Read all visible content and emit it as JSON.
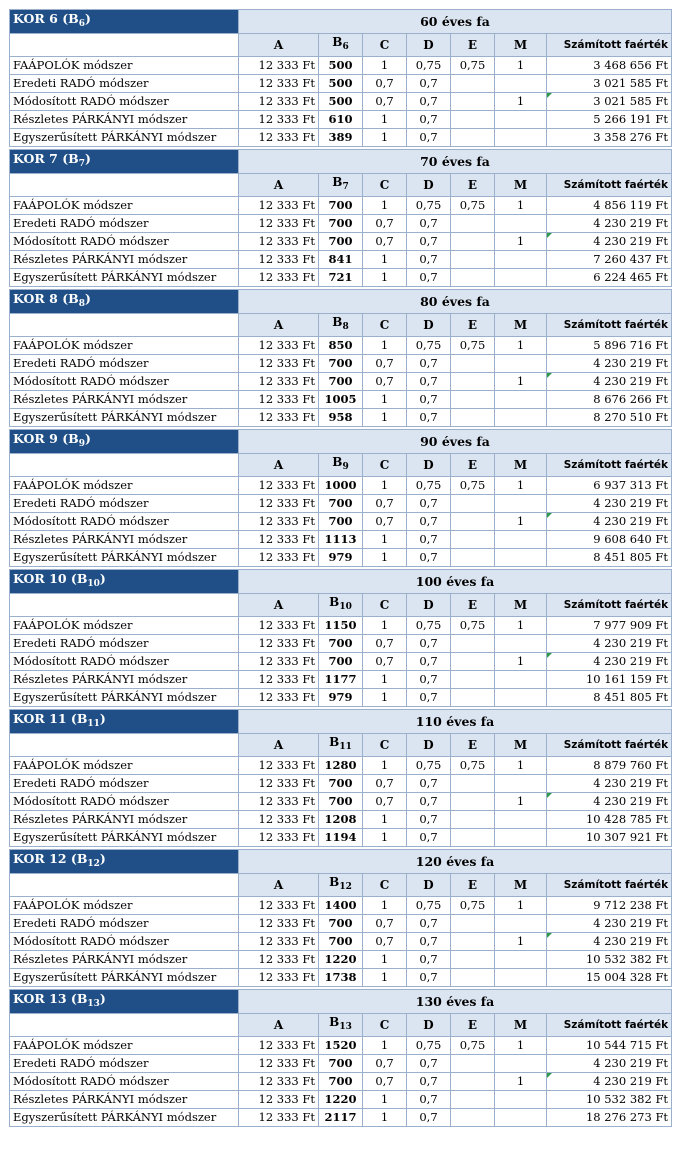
{
  "headers": {
    "a": "A",
    "b": "B",
    "c": "C",
    "d": "D",
    "e": "E",
    "m": "M",
    "result": "Számított faérték"
  },
  "blocks": [
    {
      "group": "KOR 6 (B",
      "index": "6",
      "close": ")",
      "age": "60 éves fa",
      "rows": [
        {
          "method": "FAÁPOLÓK módszer",
          "a": "12 333 Ft",
          "b": "500",
          "c": "1",
          "d": "0,75",
          "e": "0,75",
          "m": "1",
          "value": "3 468 656 Ft"
        },
        {
          "method": "Eredeti RADÓ módszer",
          "a": "12 333 Ft",
          "b": "500",
          "c": "0,7",
          "d": "0,7",
          "e": "",
          "m": "",
          "value": "3 021 585 Ft"
        },
        {
          "method": "Módosított RADÓ módszer",
          "a": "12 333 Ft",
          "b": "500",
          "c": "0,7",
          "d": "0,7",
          "e": "",
          "m": "1",
          "value": "3 021 585 Ft"
        },
        {
          "method": "Részletes PÁRKÁNYI módszer",
          "a": "12 333 Ft",
          "b": "610",
          "c": "1",
          "d": "0,7",
          "e": "",
          "m": "",
          "value": "5 266 191 Ft"
        },
        {
          "method": "Egyszerűsített PÁRKÁNYI módszer",
          "a": "12 333 Ft",
          "b": "389",
          "c": "1",
          "d": "0,7",
          "e": "",
          "m": "",
          "value": "3 358 276 Ft"
        }
      ]
    },
    {
      "group": "KOR 7 (B",
      "index": "7",
      "close": ")",
      "age": "70 éves fa",
      "rows": [
        {
          "method": "FAÁPOLÓK módszer",
          "a": "12 333 Ft",
          "b": "700",
          "c": "1",
          "d": "0,75",
          "e": "0,75",
          "m": "1",
          "value": "4 856 119 Ft"
        },
        {
          "method": "Eredeti RADÓ módszer",
          "a": "12 333 Ft",
          "b": "700",
          "c": "0,7",
          "d": "0,7",
          "e": "",
          "m": "",
          "value": "4 230 219 Ft"
        },
        {
          "method": "Módosított RADÓ módszer",
          "a": "12 333 Ft",
          "b": "700",
          "c": "0,7",
          "d": "0,7",
          "e": "",
          "m": "1",
          "value": "4 230 219 Ft"
        },
        {
          "method": "Részletes PÁRKÁNYI módszer",
          "a": "12 333 Ft",
          "b": "841",
          "c": "1",
          "d": "0,7",
          "e": "",
          "m": "",
          "value": "7 260 437 Ft"
        },
        {
          "method": "Egyszerűsített PÁRKÁNYI módszer",
          "a": "12 333 Ft",
          "b": "721",
          "c": "1",
          "d": "0,7",
          "e": "",
          "m": "",
          "value": "6 224 465 Ft"
        }
      ]
    },
    {
      "group": "KOR 8 (B",
      "index": "8",
      "close": ")",
      "age": "80 éves fa",
      "rows": [
        {
          "method": "FAÁPOLÓK módszer",
          "a": "12 333 Ft",
          "b": "850",
          "c": "1",
          "d": "0,75",
          "e": "0,75",
          "m": "1",
          "value": "5 896 716 Ft"
        },
        {
          "method": "Eredeti RADÓ módszer",
          "a": "12 333 Ft",
          "b": "700",
          "c": "0,7",
          "d": "0,7",
          "e": "",
          "m": "",
          "value": "4 230 219 Ft"
        },
        {
          "method": "Módosított RADÓ módszer",
          "a": "12 333 Ft",
          "b": "700",
          "c": "0,7",
          "d": "0,7",
          "e": "",
          "m": "1",
          "value": "4 230 219 Ft"
        },
        {
          "method": "Részletes PÁRKÁNYI módszer",
          "a": "12 333 Ft",
          "b": "1005",
          "c": "1",
          "d": "0,7",
          "e": "",
          "m": "",
          "value": "8 676 266 Ft"
        },
        {
          "method": "Egyszerűsített PÁRKÁNYI módszer",
          "a": "12 333 Ft",
          "b": "958",
          "c": "1",
          "d": "0,7",
          "e": "",
          "m": "",
          "value": "8 270 510 Ft"
        }
      ]
    },
    {
      "group": "KOR 9 (B",
      "index": "9",
      "close": ")",
      "age": "90 éves fa",
      "rows": [
        {
          "method": "FAÁPOLÓK módszer",
          "a": "12 333 Ft",
          "b": "1000",
          "c": "1",
          "d": "0,75",
          "e": "0,75",
          "m": "1",
          "value": "6 937 313 Ft"
        },
        {
          "method": "Eredeti RADÓ módszer",
          "a": "12 333 Ft",
          "b": "700",
          "c": "0,7",
          "d": "0,7",
          "e": "",
          "m": "",
          "value": "4 230 219 Ft"
        },
        {
          "method": "Módosított RADÓ módszer",
          "a": "12 333 Ft",
          "b": "700",
          "c": "0,7",
          "d": "0,7",
          "e": "",
          "m": "1",
          "value": "4 230 219 Ft"
        },
        {
          "method": "Részletes PÁRKÁNYI módszer",
          "a": "12 333 Ft",
          "b": "1113",
          "c": "1",
          "d": "0,7",
          "e": "",
          "m": "",
          "value": "9 608 640 Ft"
        },
        {
          "method": "Egyszerűsített PÁRKÁNYI módszer",
          "a": "12 333 Ft",
          "b": "979",
          "c": "1",
          "d": "0,7",
          "e": "",
          "m": "",
          "value": "8 451 805 Ft"
        }
      ]
    },
    {
      "group": "KOR 10 (B",
      "index": "10",
      "close": ")",
      "age": "100 éves fa",
      "rows": [
        {
          "method": "FAÁPOLÓK módszer",
          "a": "12 333 Ft",
          "b": "1150",
          "c": "1",
          "d": "0,75",
          "e": "0,75",
          "m": "1",
          "value": "7 977 909 Ft"
        },
        {
          "method": "Eredeti RADÓ módszer",
          "a": "12 333 Ft",
          "b": "700",
          "c": "0,7",
          "d": "0,7",
          "e": "",
          "m": "",
          "value": "4 230 219 Ft"
        },
        {
          "method": "Módosított RADÓ módszer",
          "a": "12 333 Ft",
          "b": "700",
          "c": "0,7",
          "d": "0,7",
          "e": "",
          "m": "1",
          "value": "4 230 219 Ft"
        },
        {
          "method": "Részletes PÁRKÁNYI módszer",
          "a": "12 333 Ft",
          "b": "1177",
          "c": "1",
          "d": "0,7",
          "e": "",
          "m": "",
          "value": "10 161 159 Ft"
        },
        {
          "method": "Egyszerűsített PÁRKÁNYI módszer",
          "a": "12 333 Ft",
          "b": "979",
          "c": "1",
          "d": "0,7",
          "e": "",
          "m": "",
          "value": "8 451 805 Ft"
        }
      ]
    },
    {
      "group": "KOR 11 (B",
      "index": "11",
      "close": ")",
      "age": "110 éves fa",
      "rows": [
        {
          "method": "FAÁPOLÓK módszer",
          "a": "12 333 Ft",
          "b": "1280",
          "c": "1",
          "d": "0,75",
          "e": "0,75",
          "m": "1",
          "value": "8 879 760 Ft"
        },
        {
          "method": "Eredeti RADÓ módszer",
          "a": "12 333 Ft",
          "b": "700",
          "c": "0,7",
          "d": "0,7",
          "e": "",
          "m": "",
          "value": "4 230 219 Ft"
        },
        {
          "method": "Módosított RADÓ módszer",
          "a": "12 333 Ft",
          "b": "700",
          "c": "0,7",
          "d": "0,7",
          "e": "",
          "m": "1",
          "value": "4 230 219 Ft"
        },
        {
          "method": "Részletes PÁRKÁNYI módszer",
          "a": "12 333 Ft",
          "b": "1208",
          "c": "1",
          "d": "0,7",
          "e": "",
          "m": "",
          "value": "10 428 785 Ft"
        },
        {
          "method": "Egyszerűsített PÁRKÁNYI módszer",
          "a": "12 333 Ft",
          "b": "1194",
          "c": "1",
          "d": "0,7",
          "e": "",
          "m": "",
          "value": "10 307 921 Ft"
        }
      ]
    },
    {
      "group": "KOR 12 (B",
      "index": "12",
      "close": ")",
      "age": "120 éves fa",
      "rows": [
        {
          "method": "FAÁPOLÓK módszer",
          "a": "12 333 Ft",
          "b": "1400",
          "c": "1",
          "d": "0,75",
          "e": "0,75",
          "m": "1",
          "value": "9 712 238 Ft"
        },
        {
          "method": "Eredeti RADÓ módszer",
          "a": "12 333 Ft",
          "b": "700",
          "c": "0,7",
          "d": "0,7",
          "e": "",
          "m": "",
          "value": "4 230 219 Ft"
        },
        {
          "method": "Módosított RADÓ módszer",
          "a": "12 333 Ft",
          "b": "700",
          "c": "0,7",
          "d": "0,7",
          "e": "",
          "m": "1",
          "value": "4 230 219 Ft"
        },
        {
          "method": "Részletes PÁRKÁNYI módszer",
          "a": "12 333 Ft",
          "b": "1220",
          "c": "1",
          "d": "0,7",
          "e": "",
          "m": "",
          "value": "10 532 382 Ft"
        },
        {
          "method": "Egyszerűsített PÁRKÁNYI módszer",
          "a": "12 333 Ft",
          "b": "1738",
          "c": "1",
          "d": "0,7",
          "e": "",
          "m": "",
          "value": "15 004 328 Ft"
        }
      ]
    },
    {
      "group": "KOR 13 (B",
      "index": "13",
      "close": ")",
      "age": "130 éves fa",
      "rows": [
        {
          "method": "FAÁPOLÓK módszer",
          "a": "12 333 Ft",
          "b": "1520",
          "c": "1",
          "d": "0,75",
          "e": "0,75",
          "m": "1",
          "value": "10 544 715 Ft"
        },
        {
          "method": "Eredeti RADÓ módszer",
          "a": "12 333 Ft",
          "b": "700",
          "c": "0,7",
          "d": "0,7",
          "e": "",
          "m": "",
          "value": "4 230 219 Ft"
        },
        {
          "method": "Módosított RADÓ módszer",
          "a": "12 333 Ft",
          "b": "700",
          "c": "0,7",
          "d": "0,7",
          "e": "",
          "m": "1",
          "value": "4 230 219 Ft"
        },
        {
          "method": "Részletes PÁRKÁNYI módszer",
          "a": "12 333 Ft",
          "b": "1220",
          "c": "1",
          "d": "0,7",
          "e": "",
          "m": "",
          "value": "10 532 382 Ft"
        },
        {
          "method": "Egyszerűsített PÁRKÁNYI módszer",
          "a": "12 333 Ft",
          "b": "2117",
          "c": "1",
          "d": "0,7",
          "e": "",
          "m": "",
          "value": "18 276 273 Ft"
        }
      ]
    }
  ],
  "colors": {
    "group_header_bg": "#1f4f86",
    "header_bg": "#dbe5f1",
    "grid": "#9ab0cc",
    "comment_marker": "#2e9a48"
  }
}
